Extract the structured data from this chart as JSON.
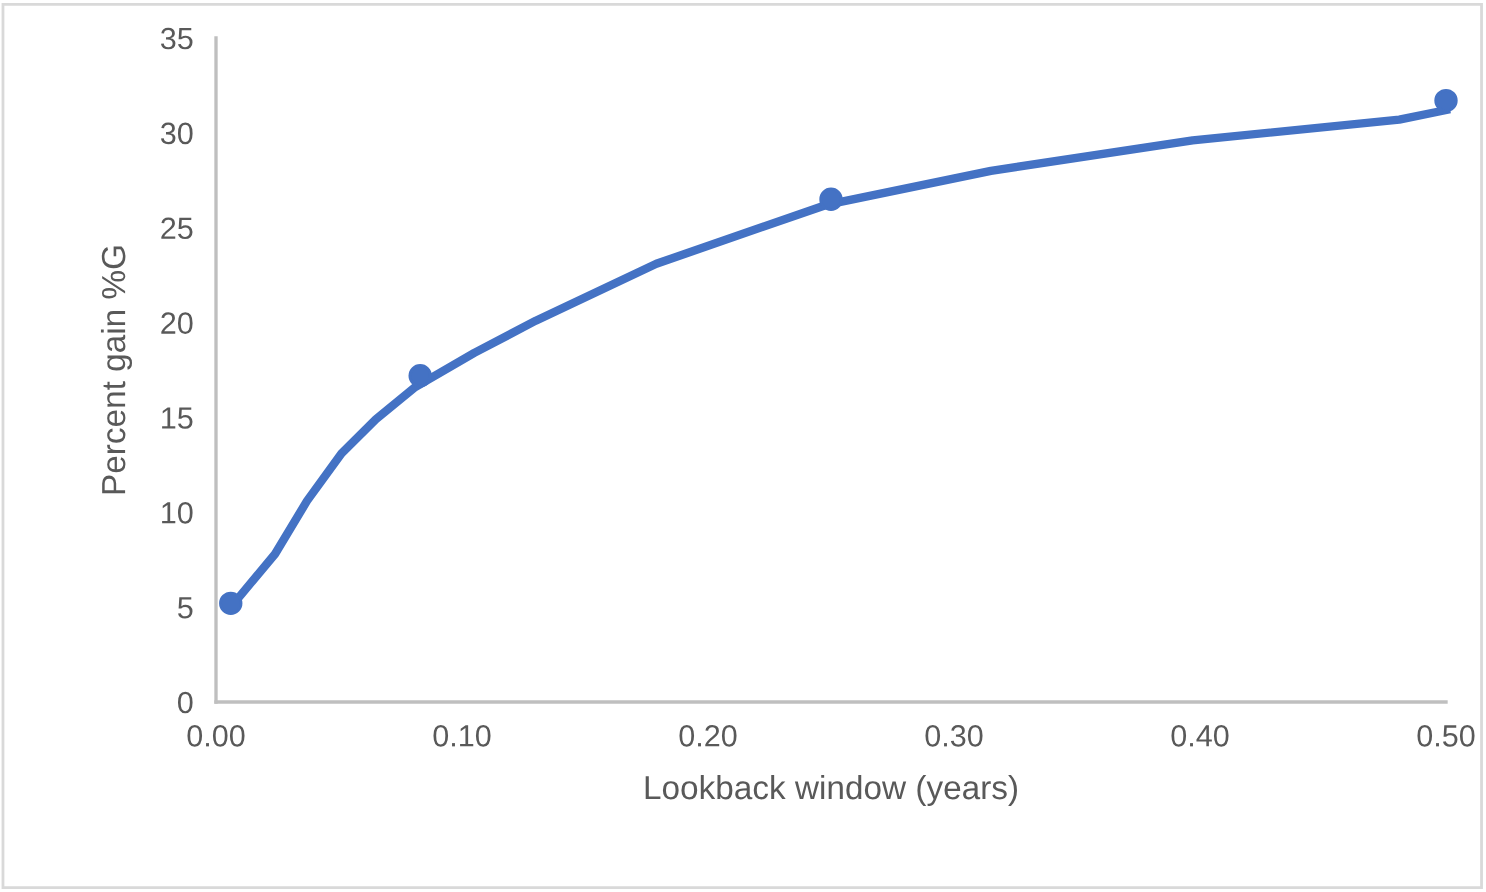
{
  "chart_data": {
    "type": "scatter",
    "xlabel": "Lookback window (years)",
    "ylabel": "Percent gain %G",
    "xlim": [
      0,
      0.5
    ],
    "ylim": [
      0,
      35
    ],
    "xticks": [
      {
        "value": 0,
        "label": "0.00"
      },
      {
        "value": 0.1,
        "label": "0.10"
      },
      {
        "value": 0.2,
        "label": "0.20"
      },
      {
        "value": 0.3,
        "label": "0.30"
      },
      {
        "value": 0.4,
        "label": "0.40"
      },
      {
        "value": 0.5,
        "label": "0.50"
      }
    ],
    "yticks": [
      0,
      5,
      10,
      15,
      20,
      25,
      30,
      35
    ],
    "grid": false,
    "legend": false,
    "series": [
      {
        "color": "#4472c4",
        "marker": "circle",
        "x": [
          0.006,
          0.083,
          0.25,
          0.5
        ],
        "values": [
          5.2,
          17.2,
          26.5,
          31.7
        ]
      },
      {
        "type": "line",
        "color": "#4472c4",
        "marker": "none",
        "line_style": "solid",
        "x": [
          0.006,
          0.024,
          0.037,
          0.051,
          0.065,
          0.081,
          0.105,
          0.13,
          0.179,
          0.248,
          0.315,
          0.397,
          0.481,
          0.5
        ],
        "values": [
          5.0,
          7.8,
          10.6,
          13.1,
          14.9,
          16.6,
          18.4,
          20.1,
          23.1,
          26.2,
          28.0,
          29.6,
          30.7,
          31.2
        ]
      }
    ]
  }
}
